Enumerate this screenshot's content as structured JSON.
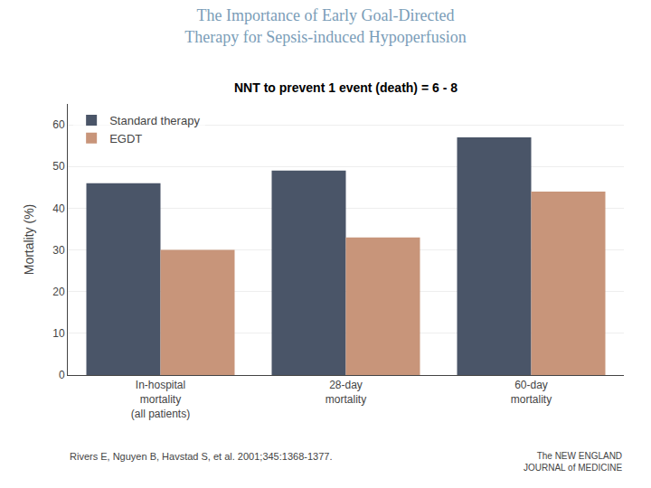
{
  "chart_data": {
    "type": "bar",
    "title": "The Importance of Early Goal-Directed\nTherapy for Sepsis-induced Hypoperfusion",
    "subtitle": "NNT to prevent 1 event (death) = 6 - 8",
    "categories": [
      "In-hospital\nmortality\n(all patients)",
      "28-day\nmortality",
      "60-day\nmortality"
    ],
    "series": [
      {
        "name": "Standard therapy",
        "color": "#4a5568",
        "values": [
          46,
          49,
          57
        ]
      },
      {
        "name": "EGDT",
        "color": "#c8957a",
        "values": [
          30,
          33,
          44
        ]
      }
    ],
    "ylabel": "Mortality (%)",
    "ylim": [
      0,
      65
    ],
    "yticks": [
      0,
      10,
      20,
      30,
      40,
      50,
      60
    ],
    "grid": true,
    "legend": "upper left",
    "annotations": [
      "Rivers E, Nguyen B, Havstad S, et al. 2001;345:1368-1377.",
      "The NEW ENGLAND\nJOURNAL of MEDICINE"
    ]
  }
}
